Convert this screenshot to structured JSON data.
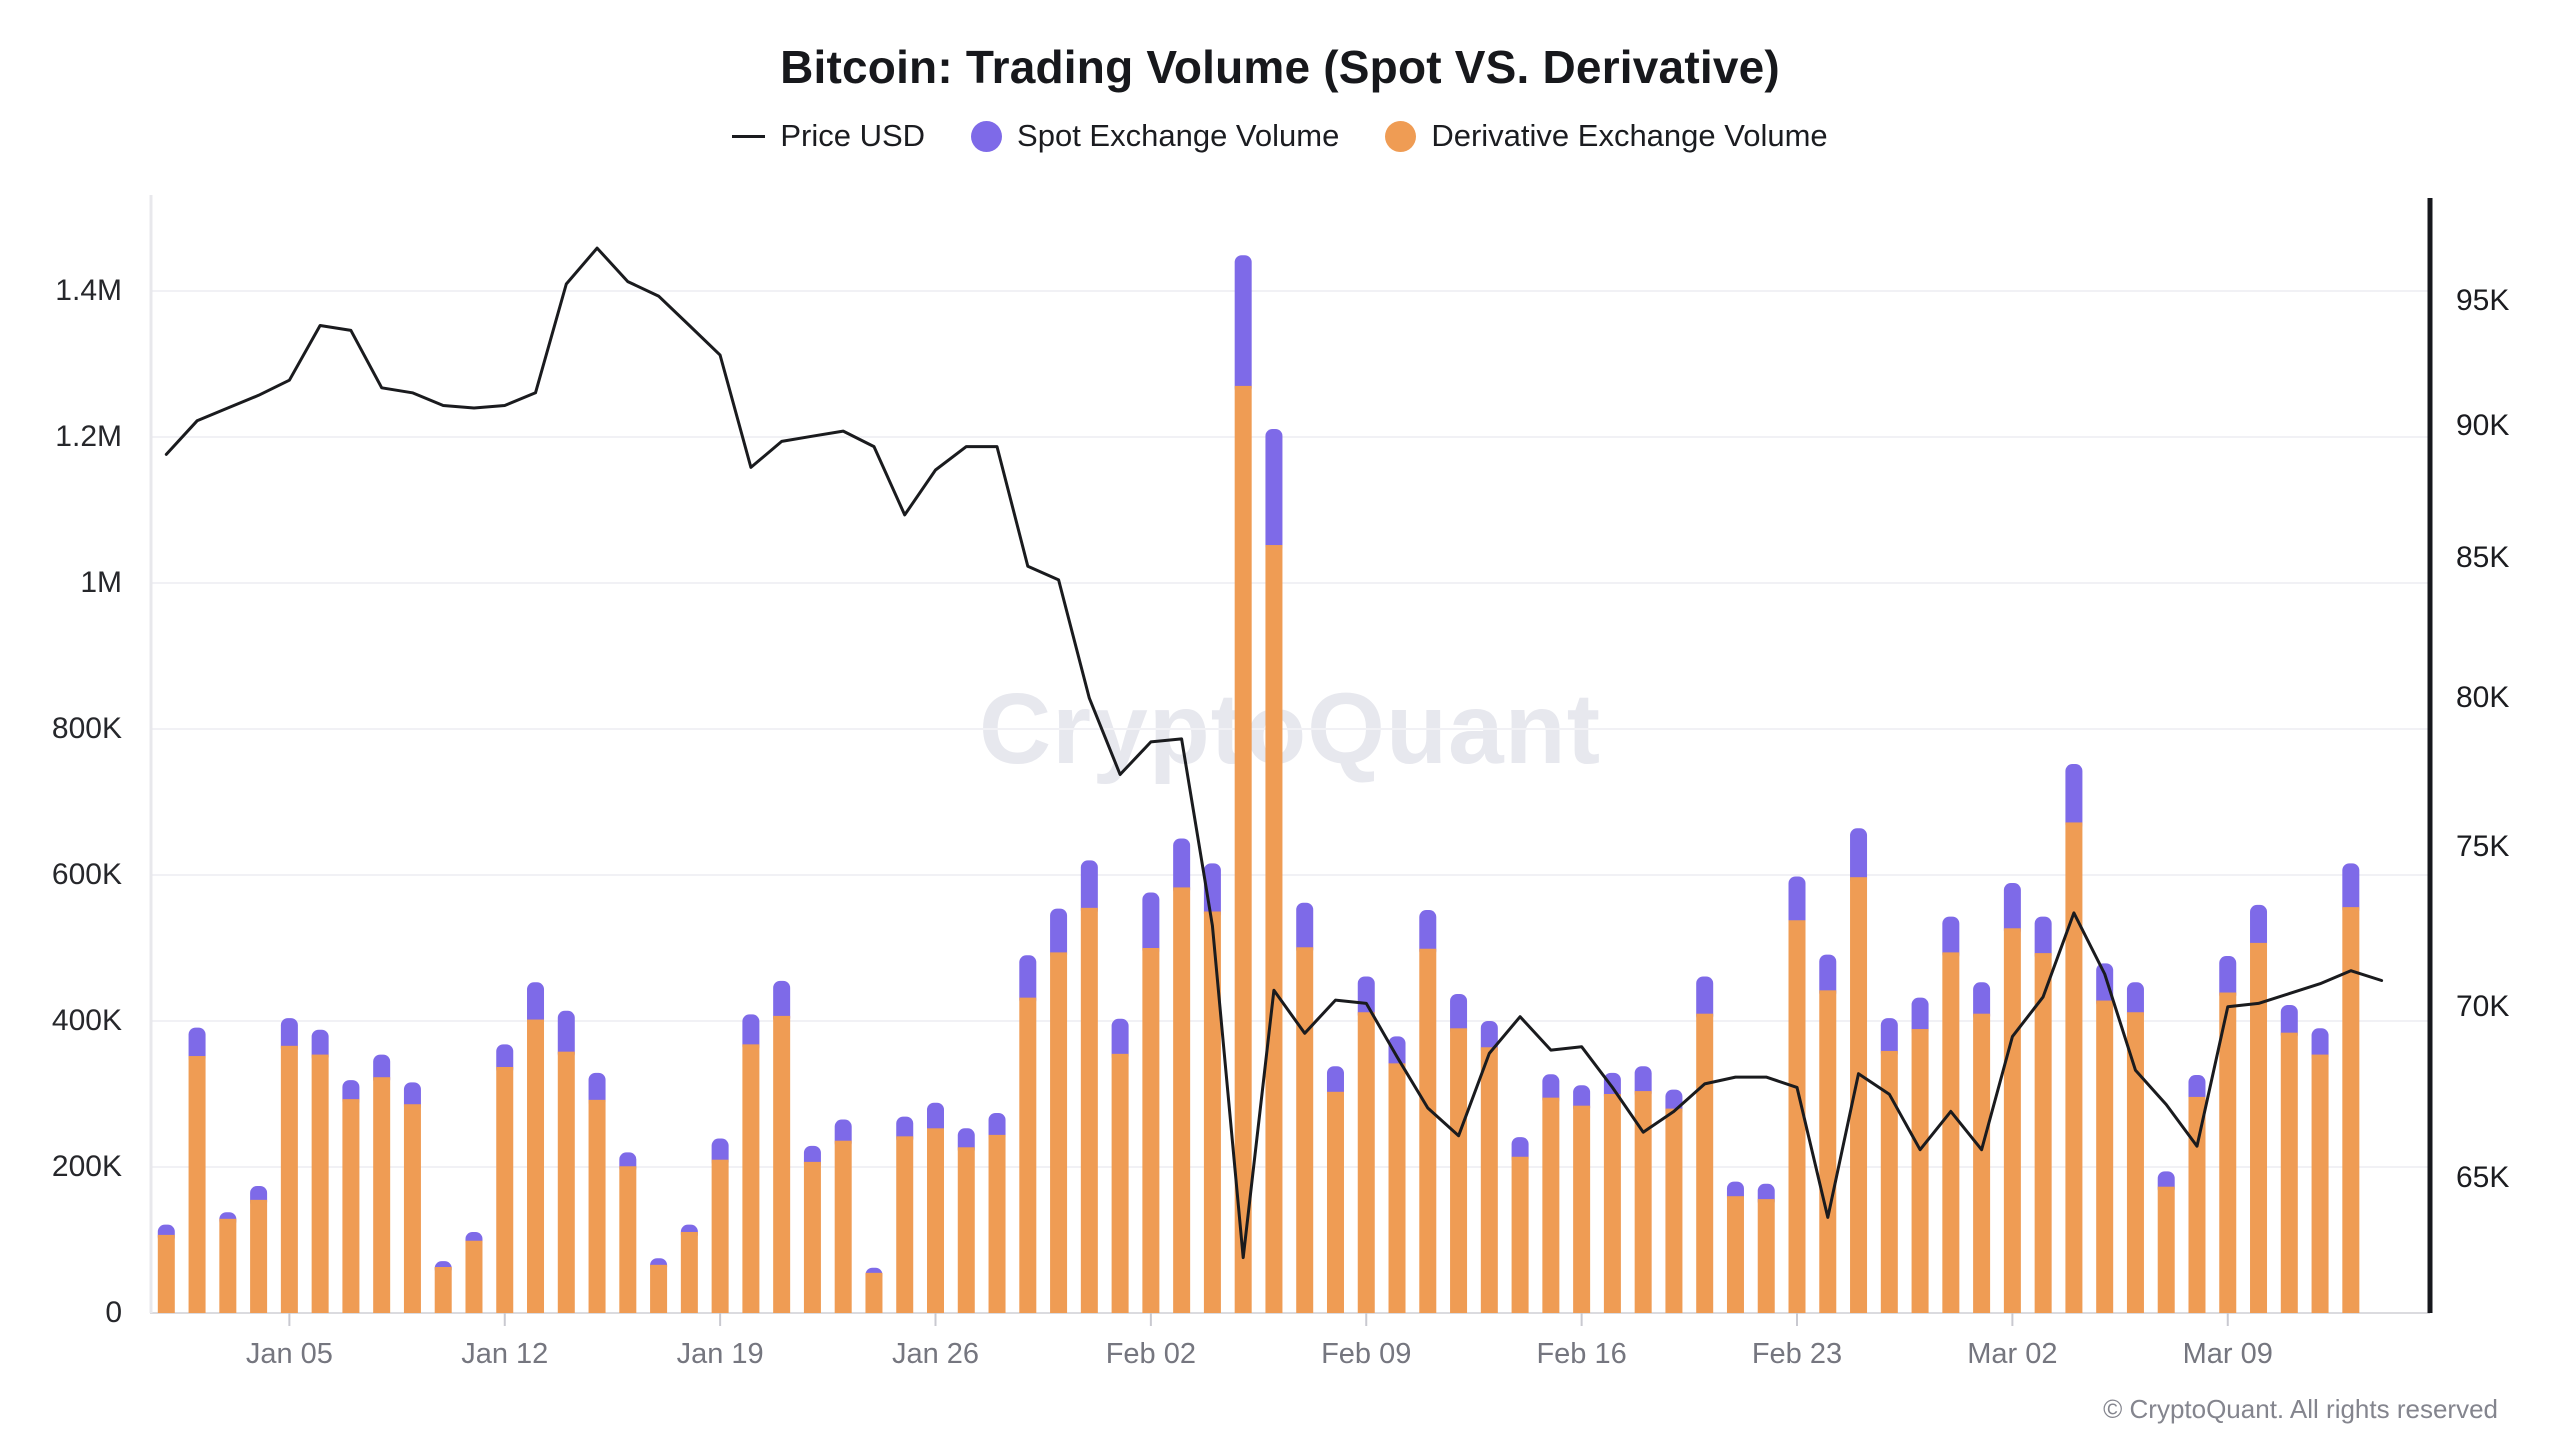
{
  "title": "Bitcoin: Trading Volume (Spot VS. Derivative)",
  "watermark": "CryptoQuant",
  "footer": "© CryptoQuant. All rights reserved",
  "legend": {
    "items": [
      {
        "label": "Price USD",
        "marker": "line",
        "color": "#1A1B1E"
      },
      {
        "label": "Spot Exchange Volume",
        "marker": "dot",
        "color": "#7E6AE8"
      },
      {
        "label": "Derivative Exchange Volume",
        "marker": "dot",
        "color": "#EF9C54"
      }
    ]
  },
  "chart_data": {
    "type": "bar",
    "stacked": true,
    "grid": true,
    "legend_position": "top",
    "title": "Bitcoin: Trading Volume (Spot VS. Derivative)",
    "x": [
      "Jan 01",
      "Jan 02",
      "Jan 03",
      "Jan 04",
      "Jan 05",
      "Jan 06",
      "Jan 07",
      "Jan 08",
      "Jan 09",
      "Jan 10",
      "Jan 11",
      "Jan 12",
      "Jan 13",
      "Jan 14",
      "Jan 15",
      "Jan 16",
      "Jan 17",
      "Jan 18",
      "Jan 19",
      "Jan 20",
      "Jan 21",
      "Jan 22",
      "Jan 23",
      "Jan 24",
      "Jan 25",
      "Jan 26",
      "Jan 27",
      "Jan 28",
      "Jan 29",
      "Jan 30",
      "Jan 31",
      "Feb 01",
      "Feb 02",
      "Feb 03",
      "Feb 04",
      "Feb 05",
      "Feb 06",
      "Feb 07",
      "Feb 08",
      "Feb 09",
      "Feb 10",
      "Feb 11",
      "Feb 12",
      "Feb 13",
      "Feb 14",
      "Feb 15",
      "Feb 16",
      "Feb 17",
      "Feb 18",
      "Feb 19",
      "Feb 20",
      "Feb 21",
      "Feb 22",
      "Feb 23",
      "Feb 24",
      "Feb 25",
      "Feb 26",
      "Feb 27",
      "Feb 28",
      "Mar 01",
      "Mar 02",
      "Mar 03",
      "Mar 04",
      "Mar 05",
      "Mar 06",
      "Mar 07",
      "Mar 08",
      "Mar 09",
      "Mar 10",
      "Mar 11",
      "Mar 12",
      "Mar 13",
      "Mar 14"
    ],
    "bar_count": 72,
    "series": [
      {
        "name": "Derivative Exchange Volume",
        "type": "bar",
        "stack": true,
        "color": "#EF9C54",
        "values": [
          107000,
          352000,
          129000,
          155000,
          366000,
          354000,
          293000,
          323000,
          286000,
          63000,
          99000,
          337000,
          402000,
          358000,
          292000,
          201000,
          66000,
          111000,
          210000,
          368000,
          407000,
          207000,
          236000,
          55000,
          242000,
          253000,
          227000,
          244000,
          432000,
          494000,
          555000,
          355000,
          500000,
          583000,
          550000,
          1270000,
          1052000,
          501000,
          303000,
          412000,
          342000,
          499000,
          390000,
          364000,
          214000,
          295000,
          284000,
          300000,
          304000,
          280000,
          410000,
          160000,
          156000,
          538000,
          442000,
          597000,
          359000,
          389000,
          494000,
          410000,
          527000,
          493000,
          672000,
          428000,
          412000,
          173000,
          296000,
          439000,
          507000,
          384000,
          354000,
          556000
        ]
      },
      {
        "name": "Spot Exchange Volume",
        "type": "bar",
        "stack": true,
        "color": "#7E6AE8",
        "values": [
          14000,
          39000,
          9000,
          19000,
          38000,
          34000,
          26000,
          31000,
          30000,
          8000,
          12000,
          31000,
          51000,
          56000,
          37000,
          19000,
          9000,
          10000,
          29000,
          41000,
          48000,
          22000,
          29000,
          7000,
          27000,
          35000,
          26000,
          30000,
          58000,
          60000,
          65000,
          48000,
          76000,
          67000,
          66000,
          179000,
          159000,
          61000,
          35000,
          49000,
          37000,
          53000,
          47000,
          36000,
          27000,
          32000,
          28000,
          29000,
          34000,
          26000,
          51000,
          20000,
          21000,
          60000,
          49000,
          67000,
          45000,
          43000,
          49000,
          43000,
          62000,
          50000,
          80000,
          51000,
          41000,
          21000,
          30000,
          50000,
          52000,
          38000,
          36000,
          60000
        ]
      },
      {
        "name": "Price USD",
        "type": "line",
        "axis": "right",
        "color": "#1A1B1E",
        "values": [
          88900,
          90200,
          90700,
          91200,
          91800,
          94000,
          93800,
          91500,
          91300,
          90800,
          90700,
          90800,
          91300,
          95700,
          97200,
          95800,
          95200,
          94000,
          92800,
          88400,
          89400,
          89600,
          89800,
          89200,
          86600,
          88300,
          89200,
          89200,
          84700,
          84200,
          80000,
          77400,
          78500,
          78600,
          72500,
          62800,
          70500,
          69200,
          70200,
          70100,
          68500,
          67000,
          66200,
          68600,
          69700,
          68700,
          68800,
          67600,
          66300,
          66900,
          67700,
          67900,
          67900,
          67600,
          63900,
          68000,
          67400,
          65800,
          66900,
          65800,
          69100,
          70300,
          72900,
          71000,
          68100,
          67100,
          65900,
          70000,
          70100,
          70400,
          70700,
          71100,
          70800
        ]
      }
    ],
    "xticks": {
      "labels": [
        "Jan 05",
        "Jan 12",
        "Jan 19",
        "Jan 26",
        "Feb 02",
        "Feb 09",
        "Feb 16",
        "Feb 23",
        "Mar 02",
        "Mar 09"
      ],
      "day_index": [
        4,
        11,
        18,
        25,
        32,
        39,
        46,
        53,
        60,
        67
      ]
    },
    "left_axis": {
      "unit": "volume",
      "ylim": [
        0,
        1532000
      ],
      "ticks": [
        {
          "label": "0",
          "value": 0
        },
        {
          "label": "200K",
          "value": 200000
        },
        {
          "label": "400K",
          "value": 400000
        },
        {
          "label": "600K",
          "value": 600000
        },
        {
          "label": "800K",
          "value": 800000
        },
        {
          "label": "1M",
          "value": 1000000
        },
        {
          "label": "1.2M",
          "value": 1200000
        },
        {
          "label": "1.4M",
          "value": 1400000
        }
      ]
    },
    "right_axis": {
      "unit": "USD",
      "scale": "log",
      "ticks": [
        {
          "label": "65K",
          "value": 65000
        },
        {
          "label": "70K",
          "value": 70000
        },
        {
          "label": "75K",
          "value": 75000
        },
        {
          "label": "80K",
          "value": 80000
        },
        {
          "label": "85K",
          "value": 85000
        },
        {
          "label": "90K",
          "value": 90000
        },
        {
          "label": "95K",
          "value": 95000
        }
      ]
    },
    "colors": {
      "grid": "#F1F1F5",
      "baseline": "#DBDBDF",
      "left_axis_line": "#E8E8EC",
      "right_axis_line": "#17181D",
      "tick_mark": "#C9C9D0"
    }
  }
}
